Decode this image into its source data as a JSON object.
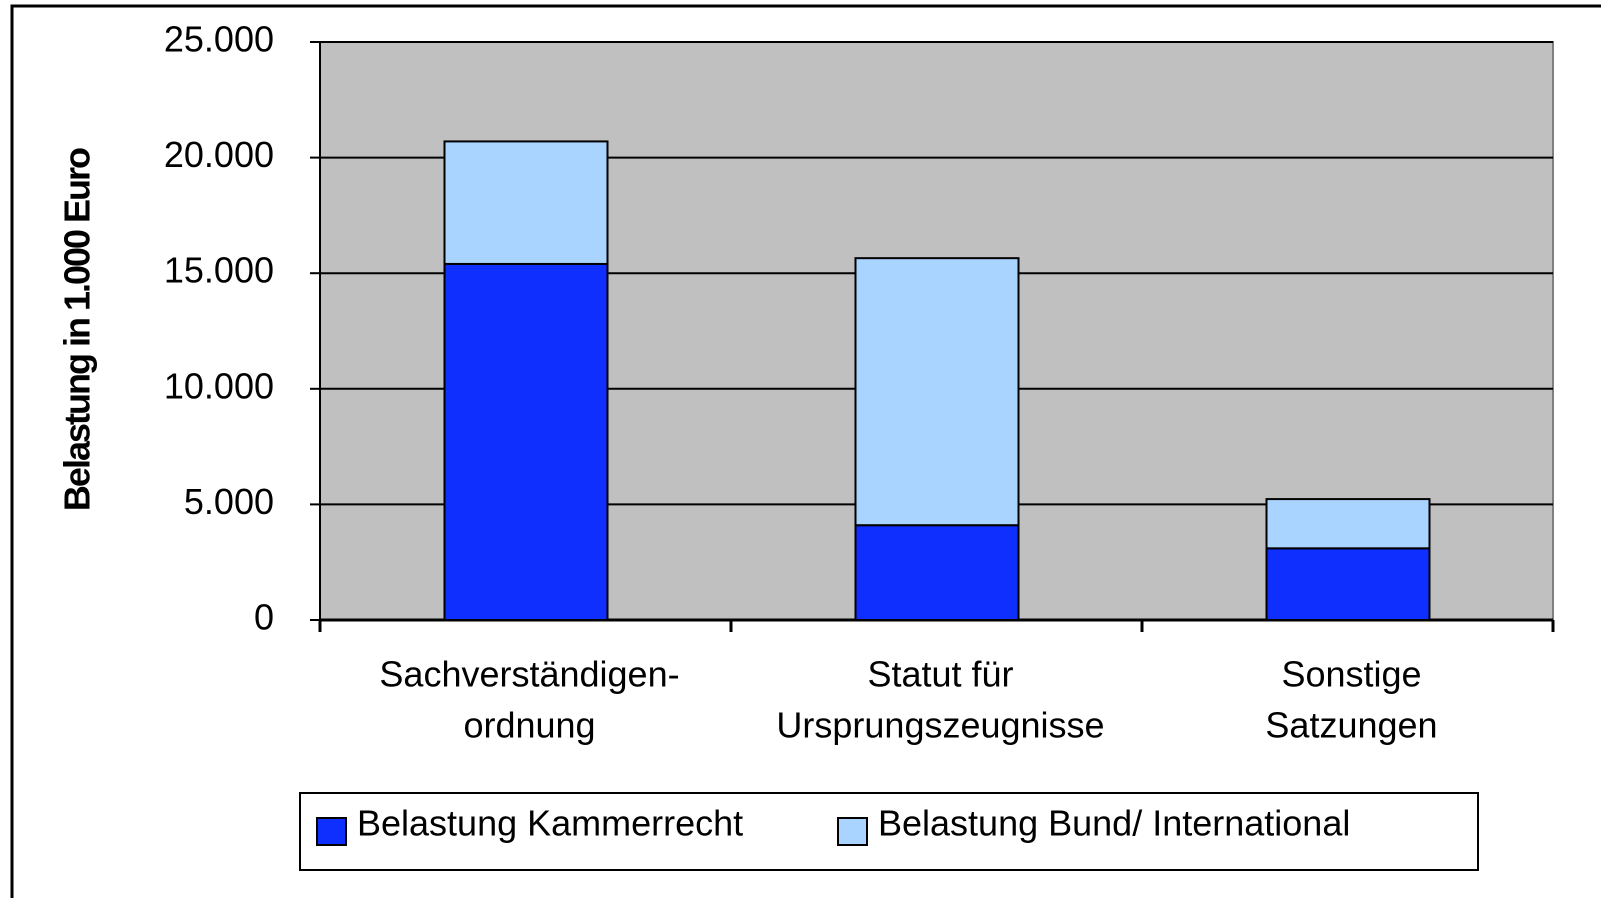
{
  "chart_data": {
    "type": "bar",
    "stacked": true,
    "y_label": "Belastung in 1.000 Euro",
    "categories": [
      [
        "Sachverständigen-",
        "ordnung"
      ],
      [
        "Statut für",
        "Ursprungszeugnisse"
      ],
      [
        "Sonstige",
        "Satzungen"
      ]
    ],
    "series": [
      {
        "name": "Belastung Kammerrecht",
        "color": "#0f2fff",
        "values": [
          15400,
          4100,
          3100
        ]
      },
      {
        "name": "Belastung Bund/ International",
        "color": "#a8d4ff",
        "values": [
          5300,
          11550,
          2130
        ]
      }
    ],
    "ylim": [
      0,
      25000
    ],
    "yticks": [
      0,
      {
        "value": 5000,
        "label": "5.000"
      },
      {
        "value": 10000,
        "label": "10.000"
      },
      {
        "value": 15000,
        "label": "15.000"
      },
      {
        "value": 20000,
        "label": "20.000"
      },
      {
        "value": 25000,
        "label": "25.000"
      }
    ],
    "grid": true,
    "legend": "bottom"
  }
}
